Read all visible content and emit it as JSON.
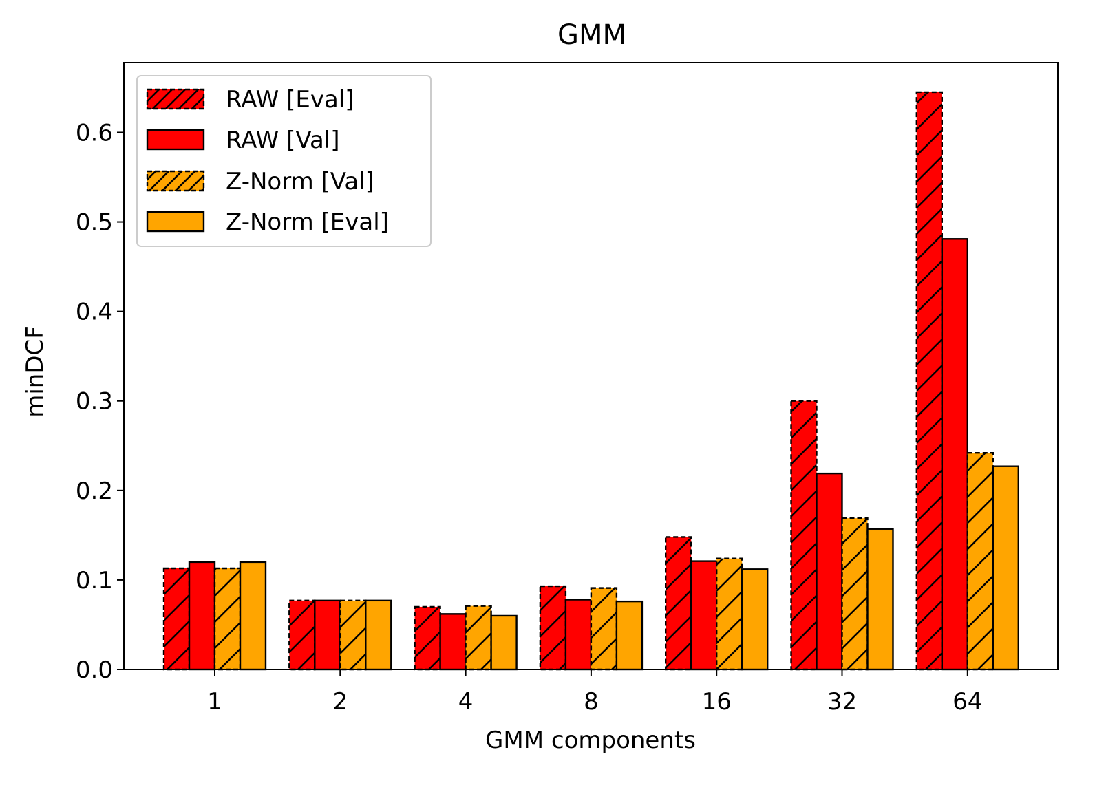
{
  "chart_data": {
    "type": "bar",
    "title": "GMM",
    "xlabel": "GMM components",
    "ylabel": "minDCF",
    "categories": [
      "1",
      "2",
      "4",
      "8",
      "16",
      "32",
      "64"
    ],
    "ylim": [
      0,
      0.678
    ],
    "yticks": [
      "0.0",
      "0.1",
      "0.2",
      "0.3",
      "0.4",
      "0.5",
      "0.6"
    ],
    "legend_position": "upper-left",
    "series": [
      {
        "name": "RAW [Eval]",
        "color": "#ff0000",
        "hatched": true,
        "dashed": true,
        "values": [
          0.113,
          0.077,
          0.07,
          0.093,
          0.148,
          0.3,
          0.645
        ]
      },
      {
        "name": "RAW [Val]",
        "color": "#ff0000",
        "hatched": false,
        "dashed": false,
        "values": [
          0.12,
          0.077,
          0.062,
          0.078,
          0.121,
          0.219,
          0.481
        ]
      },
      {
        "name": "Z-Norm [Val]",
        "color": "#ffa500",
        "hatched": true,
        "dashed": true,
        "values": [
          0.113,
          0.077,
          0.071,
          0.091,
          0.124,
          0.169,
          0.242
        ]
      },
      {
        "name": "Z-Norm [Eval]",
        "color": "#ffa500",
        "hatched": false,
        "dashed": false,
        "values": [
          0.12,
          0.077,
          0.06,
          0.076,
          0.112,
          0.157,
          0.227
        ]
      }
    ]
  }
}
